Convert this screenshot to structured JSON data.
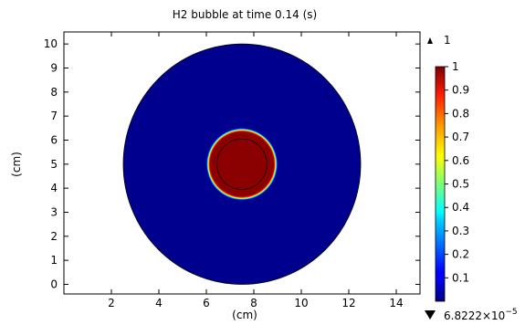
{
  "chart_data": {
    "type": "heatmap",
    "title": "H2 bubble at time 0.14 (s)",
    "xlabel": "(cm)",
    "ylabel": "(cm)",
    "xlim": [
      0,
      15
    ],
    "ylim": [
      -0.4,
      10.5
    ],
    "x_ticks": [
      2,
      4,
      6,
      8,
      10,
      12,
      14
    ],
    "y_ticks": [
      0,
      1,
      2,
      3,
      4,
      5,
      6,
      7,
      8,
      9,
      10
    ],
    "grid": false,
    "domain_circle": {
      "center_x": 7.5,
      "center_y": 5,
      "radius": 5,
      "value": 6.8222e-05
    },
    "bubble": {
      "center_x": 7.5,
      "center_y": 5,
      "radius": 1.5,
      "value": 1
    },
    "inner_contour": {
      "center_x": 7.5,
      "center_y": 5,
      "radius": 1.05
    },
    "colorbar": {
      "min": 6.8222e-05,
      "max": 1,
      "ticks": [
        0.1,
        0.2,
        0.3,
        0.4,
        0.5,
        0.6,
        0.7,
        0.8,
        0.9,
        1
      ],
      "tick_labels": [
        "0.1",
        "0.2",
        "0.3",
        "0.4",
        "0.5",
        "0.6",
        "0.7",
        "0.8",
        "0.9",
        "1"
      ],
      "max_label": "1",
      "min_label_mantissa": "6.8222×10",
      "min_label_exponent": "−5",
      "colormap": "rainbow"
    },
    "colors": {
      "low": "#00008f",
      "high": "#8b0000"
    }
  }
}
